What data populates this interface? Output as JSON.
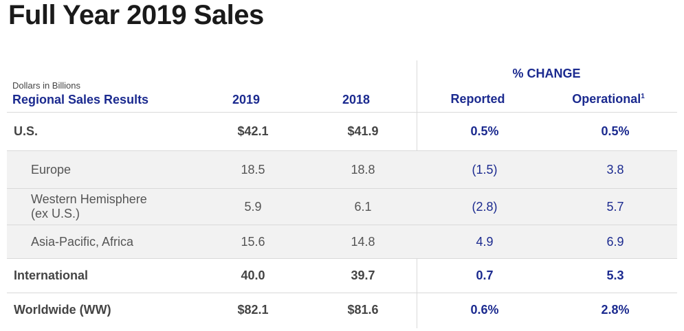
{
  "title": "Full Year 2019 Sales",
  "units_note": "Dollars in Billions",
  "pct_change_header": "% CHANGE",
  "columns": {
    "label": "Regional Sales Results",
    "y2019": "2019",
    "y2018": "2018",
    "reported": "Reported",
    "operational": "Operational",
    "operational_footnote": "1"
  },
  "rows": [
    {
      "label": "U.S.",
      "y2019": "$42.1",
      "y2018": "$41.9",
      "reported": "0.5%",
      "operational": "0.5%"
    },
    {
      "label": "Europe",
      "y2019": "18.5",
      "y2018": "18.8",
      "reported": "(1.5)",
      "operational": "3.8"
    },
    {
      "label": "Western Hemisphere\n(ex U.S.)",
      "y2019": "5.9",
      "y2018": "6.1",
      "reported": "(2.8)",
      "operational": "5.7"
    },
    {
      "label": "Asia-Pacific, Africa",
      "y2019": "15.6",
      "y2018": "14.8",
      "reported": "4.9",
      "operational": "6.9"
    },
    {
      "label": "International",
      "y2019": "40.0",
      "y2018": "39.7",
      "reported": "0.7",
      "operational": "5.3"
    },
    {
      "label": "Worldwide (WW)",
      "y2019": "$82.1",
      "y2018": "$81.6",
      "reported": "0.6%",
      "operational": "2.8%"
    }
  ]
}
